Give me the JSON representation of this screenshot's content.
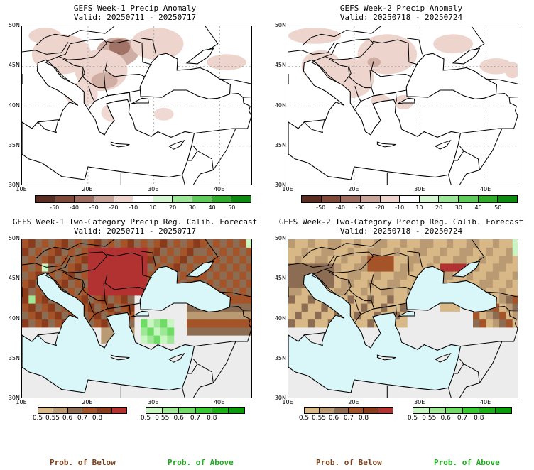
{
  "panels": [
    {
      "title": "GEFS Week-1 Precip Anomaly",
      "valid": "Valid: 20250711 - 20250717"
    },
    {
      "title": "GEFS Week-2 Precip Anomaly",
      "valid": "Valid: 20250718 - 20250724"
    },
    {
      "title": "GEFS Week-1 Two-Category Precip Reg. Calib. Forecast",
      "valid": "Valid: 20250711 - 20250717"
    },
    {
      "title": "GEFS Week-2 Two-Category Precip Reg. Calib. Forecast",
      "valid": "Valid: 20250718 - 20250724"
    }
  ],
  "axes": {
    "lat_ticks": [
      "50N",
      "45N",
      "40N",
      "35N",
      "30N"
    ],
    "lon_ticks": [
      "10E",
      "20E",
      "30E",
      "40E"
    ]
  },
  "anomaly_colorbar": {
    "labels": [
      "-50",
      "-40",
      "-30",
      "-20",
      "-10",
      "10",
      "20",
      "30",
      "40",
      "50"
    ],
    "colors": [
      "#5b2e23",
      "#7f4a3a",
      "#9c6d60",
      "#c9a49a",
      "#edd5cd",
      "#ffffff",
      "#d6f5d2",
      "#9de598",
      "#5fcd5c",
      "#2fae2c",
      "#0b8c10"
    ]
  },
  "below_colorbar": {
    "labels": [
      "0.5",
      "0.55",
      "0.6",
      "0.7",
      "0.8"
    ],
    "colors": [
      "#d8b886",
      "#b99a73",
      "#8c6c52",
      "#a45428",
      "#8a3b1c",
      "#b23232"
    ]
  },
  "above_colorbar": {
    "labels": [
      "0.5",
      "0.55",
      "0.6",
      "0.7",
      "0.8"
    ],
    "colors": [
      "#c9f5c2",
      "#9ee897",
      "#6fdc66",
      "#37c832",
      "#1ab016",
      "#0a9a0a"
    ]
  },
  "footer": {
    "below_label": "Prob. of Below",
    "above_label": "Prob. of Above"
  },
  "colors": {
    "sea": "#d9f6f8",
    "no_signal": "#ececec",
    "below_text": "#7a3e18",
    "above_text": "#1faa1f"
  }
}
